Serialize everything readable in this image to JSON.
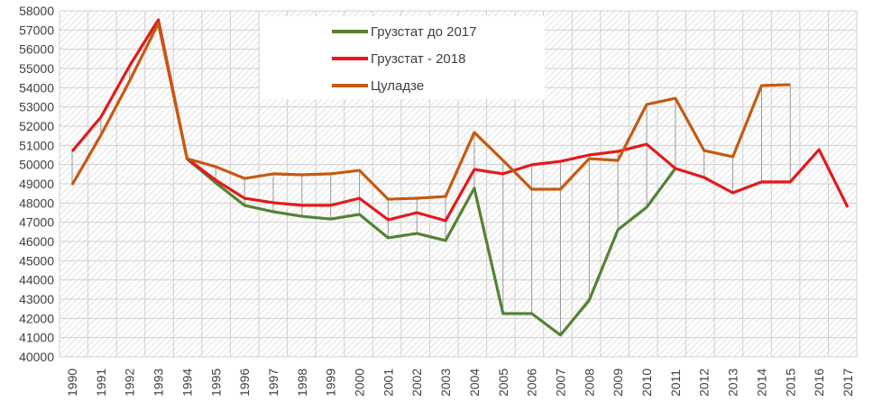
{
  "chart_data": {
    "type": "line",
    "title": "",
    "xlabel": "",
    "ylabel": "",
    "ylim": [
      40000,
      58000
    ],
    "ytick_step": 1000,
    "grid": true,
    "legend_position": "top-center",
    "drop_lines": true,
    "x": [
      1990,
      1991,
      1992,
      1993,
      1994,
      1995,
      1996,
      1997,
      1998,
      1999,
      2000,
      2001,
      2002,
      2003,
      2004,
      2005,
      2006,
      2007,
      2008,
      2009,
      2010,
      2011,
      2012,
      2013,
      2014,
      2015,
      2016,
      2017
    ],
    "series": [
      {
        "name": "Грузстат до 2017",
        "color": "#548235",
        "values": [
          null,
          null,
          null,
          null,
          50300,
          49050,
          47880,
          47550,
          47310,
          47170,
          47410,
          46190,
          46420,
          46050,
          48770,
          42250,
          42250,
          41130,
          42950,
          46610,
          47780,
          49800,
          null,
          null,
          null,
          null,
          null,
          null
        ]
      },
      {
        "name": "Грузстат - 2018",
        "color": "#e31a1c",
        "values": [
          50690,
          52470,
          55140,
          57530,
          50310,
          49190,
          48250,
          48020,
          47880,
          47880,
          48250,
          47130,
          47500,
          47080,
          49750,
          49520,
          49990,
          50170,
          50500,
          50690,
          51060,
          49800,
          49330,
          48530,
          49100,
          49100,
          50780,
          47780
        ]
      },
      {
        "name": "Цуладзе",
        "color": "#c55a11",
        "values": [
          48950,
          51530,
          54350,
          57350,
          50310,
          49890,
          49280,
          49520,
          49470,
          49520,
          49700,
          48200,
          48250,
          48340,
          51670,
          50220,
          48720,
          48720,
          50310,
          50220,
          53130,
          53450,
          50730,
          50410,
          54110,
          54160,
          null,
          null
        ]
      }
    ]
  }
}
